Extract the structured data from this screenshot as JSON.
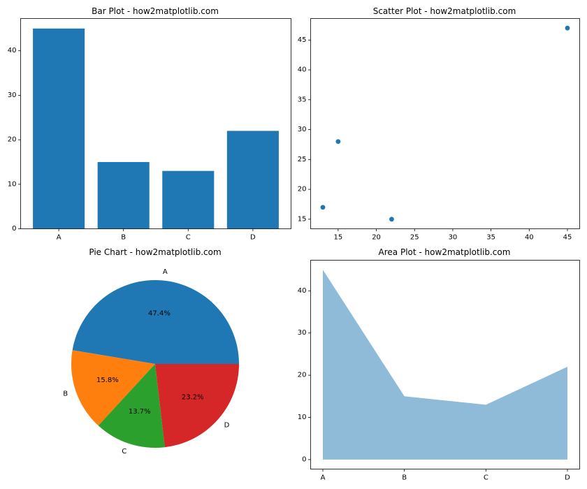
{
  "chart_data": [
    {
      "type": "bar",
      "title": "Bar Plot - how2matplotlib.com",
      "categories": [
        "A",
        "B",
        "C",
        "D"
      ],
      "values": [
        45,
        15,
        13,
        22
      ],
      "color": "#1f77b4",
      "xlabel": "",
      "ylabel": "",
      "ylim": [
        0,
        47.25
      ],
      "yticks": [
        0,
        10,
        20,
        30,
        40
      ],
      "grid": false
    },
    {
      "type": "scatter",
      "title": "Scatter Plot - how2matplotlib.com",
      "x": [
        13,
        15,
        22,
        45
      ],
      "y": [
        17,
        28,
        15,
        47
      ],
      "color": "#1f77b4",
      "xlabel": "",
      "ylabel": "",
      "xlim": [
        11.4,
        46.6
      ],
      "ylim": [
        13.4,
        48.6
      ],
      "xticks": [
        15,
        20,
        25,
        30,
        35,
        40,
        45
      ],
      "yticks": [
        15,
        20,
        25,
        30,
        35,
        40,
        45
      ],
      "grid": false
    },
    {
      "type": "pie",
      "title": "Pie Chart - how2matplotlib.com",
      "labels": [
        "A",
        "B",
        "C",
        "D"
      ],
      "values": [
        45,
        15,
        13,
        22
      ],
      "percent_labels": [
        "47.4%",
        "15.8%",
        "13.7%",
        "23.2%"
      ],
      "colors": [
        "#1f77b4",
        "#ff7f0e",
        "#2ca02c",
        "#d62728"
      ]
    },
    {
      "type": "area",
      "title": "Area Plot - how2matplotlib.com",
      "categories": [
        "A",
        "B",
        "C",
        "D"
      ],
      "values": [
        45,
        15,
        13,
        22
      ],
      "color": "#1f77b4",
      "alpha": 0.5,
      "xlabel": "",
      "ylabel": "",
      "ylim": [
        -2.25,
        47.25
      ],
      "yticks": [
        0,
        10,
        20,
        30,
        40
      ],
      "grid": false
    }
  ]
}
